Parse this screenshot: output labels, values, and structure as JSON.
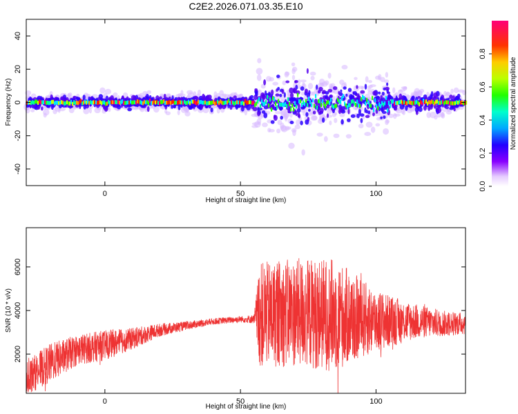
{
  "title": "C2E2.2026.071.03.35.E10",
  "chart_data": [
    {
      "type": "heatmap",
      "xlabel": "Height of straight line (km)",
      "ylabel": "Frequency (Hz)",
      "xlim": [
        -29,
        133
      ],
      "ylim": [
        -50,
        50
      ],
      "xticks": [
        0,
        50,
        100
      ],
      "yticks": [
        -40,
        -20,
        0,
        20,
        40
      ],
      "colorbar": {
        "label": "Normalized spectral amplitude",
        "range": [
          0,
          1
        ],
        "ticks": [
          "0.0",
          "0.2",
          "0.4",
          "0.6",
          "0.8"
        ]
      },
      "bands": [
        {
          "x": [
            -29,
            55
          ],
          "half_width_hz": 3
        },
        {
          "x": [
            55,
            105
          ],
          "half_width_hz": 10
        },
        {
          "x": [
            105,
            133
          ],
          "half_width_hz": 4
        }
      ]
    },
    {
      "type": "line",
      "xlabel": "Height of straight line (km)",
      "ylabel": "SNR (10 * v/v)",
      "xlim": [
        -29,
        133
      ],
      "ylim": [
        200,
        7800
      ],
      "xticks": [
        0,
        50,
        100
      ],
      "yticks": [
        2000,
        4000,
        6000
      ],
      "series_color": "#ee3333",
      "envelope": [
        {
          "x": -29,
          "mean": 900,
          "spread": 800
        },
        {
          "x": -20,
          "mean": 1600,
          "spread": 900
        },
        {
          "x": -10,
          "mean": 2200,
          "spread": 700
        },
        {
          "x": 0,
          "mean": 2400,
          "spread": 700
        },
        {
          "x": 10,
          "mean": 2700,
          "spread": 500
        },
        {
          "x": 20,
          "mean": 3100,
          "spread": 300
        },
        {
          "x": 30,
          "mean": 3300,
          "spread": 200
        },
        {
          "x": 40,
          "mean": 3500,
          "spread": 150
        },
        {
          "x": 50,
          "mean": 3600,
          "spread": 150
        },
        {
          "x": 55,
          "mean": 3600,
          "spread": 200
        },
        {
          "x": 57,
          "mean": 3800,
          "spread": 2400
        },
        {
          "x": 70,
          "mean": 3900,
          "spread": 2500
        },
        {
          "x": 85,
          "mean": 3800,
          "spread": 2600
        },
        {
          "x": 95,
          "mean": 3600,
          "spread": 1800
        },
        {
          "x": 105,
          "mean": 3500,
          "spread": 1200
        },
        {
          "x": 115,
          "mean": 3500,
          "spread": 800
        },
        {
          "x": 125,
          "mean": 3400,
          "spread": 600
        },
        {
          "x": 133,
          "mean": 3400,
          "spread": 500
        }
      ]
    }
  ]
}
